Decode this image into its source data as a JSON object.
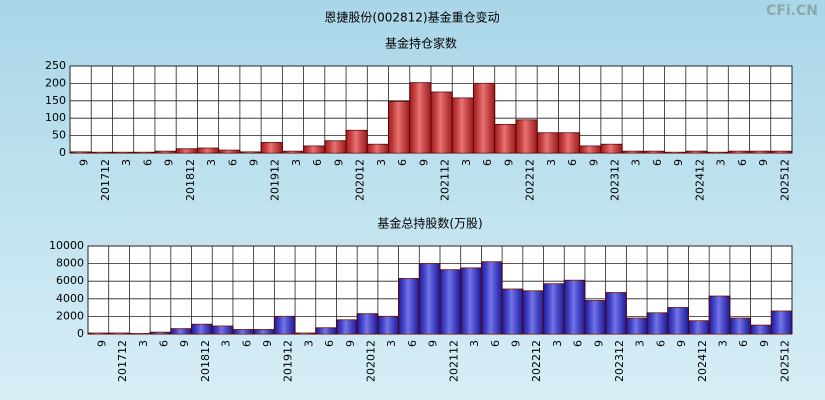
{
  "title": "恩捷股份(002812)基金重仓变动",
  "watermark": "CFi.CN",
  "chart_data": [
    {
      "type": "bar",
      "title": "基金持仓家数",
      "categories": [
        "9",
        "201712",
        "3",
        "6",
        "9",
        "201812",
        "3",
        "6",
        "9",
        "201912",
        "3",
        "6",
        "9",
        "202012",
        "3",
        "6",
        "9",
        "202112",
        "3",
        "6",
        "9",
        "202212",
        "3",
        "6",
        "9",
        "202312",
        "3",
        "6",
        "9",
        "202412",
        "3",
        "6",
        "9",
        "202512"
      ],
      "values": [
        3,
        2,
        2,
        2,
        5,
        12,
        14,
        8,
        3,
        30,
        5,
        20,
        35,
        65,
        25,
        148,
        202,
        175,
        158,
        200,
        82,
        95,
        58,
        58,
        20,
        25,
        5,
        5,
        2,
        5,
        2,
        5,
        5,
        5
      ],
      "color": "#e02828",
      "ylim": [
        0,
        250
      ],
      "yticks": [
        0,
        50,
        100,
        150,
        200,
        250
      ],
      "grid": true
    },
    {
      "type": "bar",
      "title": "基金总持股数(万股)",
      "categories": [
        "9",
        "201712",
        "3",
        "6",
        "9",
        "201812",
        "3",
        "6",
        "9",
        "201912",
        "3",
        "6",
        "9",
        "202012",
        "3",
        "6",
        "9",
        "202112",
        "3",
        "6",
        "9",
        "202212",
        "3",
        "6",
        "9",
        "202312",
        "3",
        "6",
        "9",
        "202412",
        "3",
        "6",
        "9",
        "202512"
      ],
      "values": [
        100,
        100,
        50,
        200,
        600,
        1100,
        900,
        500,
        500,
        2000,
        100,
        700,
        1600,
        2300,
        2000,
        6300,
        8000,
        7300,
        7500,
        8200,
        5100,
        4900,
        5700,
        6100,
        3800,
        4700,
        1800,
        2400,
        3000,
        1500,
        4300,
        1800,
        1000,
        2600
      ],
      "color": "#2828e0",
      "ylim": [
        0,
        10000
      ],
      "yticks": [
        0,
        2000,
        4000,
        6000,
        8000,
        10000
      ],
      "grid": true
    }
  ]
}
